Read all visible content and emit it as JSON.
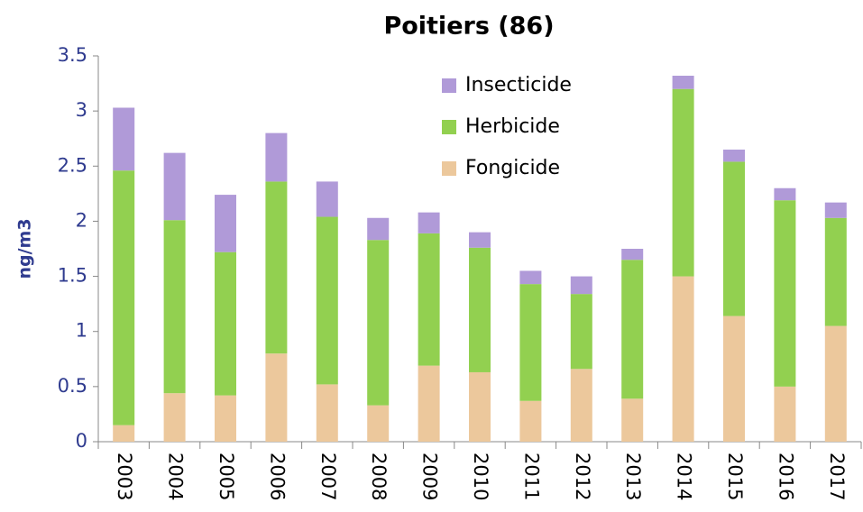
{
  "chart_data": {
    "type": "stacked_bar",
    "title": "Poitiers (86)",
    "y_label": "ng/m3",
    "categories": [
      "2003",
      "2004",
      "2005",
      "2006",
      "2007",
      "2008",
      "2009",
      "2010",
      "2011",
      "2012",
      "2013",
      "2014",
      "2015",
      "2016",
      "2017"
    ],
    "series": [
      {
        "name": "Fongicide",
        "color": "#ecc89c",
        "values": [
          0.15,
          0.44,
          0.42,
          0.8,
          0.52,
          0.33,
          0.69,
          0.63,
          0.37,
          0.66,
          0.39,
          1.5,
          1.14,
          0.5,
          1.05
        ]
      },
      {
        "name": "Herbicide",
        "color": "#92d050",
        "values": [
          2.31,
          1.57,
          1.3,
          1.56,
          1.52,
          1.5,
          1.2,
          1.13,
          1.06,
          0.68,
          1.26,
          1.7,
          1.4,
          1.69,
          0.98
        ]
      },
      {
        "name": "Insecticide",
        "color": "#b09ad8",
        "values": [
          0.57,
          0.61,
          0.52,
          0.44,
          0.32,
          0.2,
          0.19,
          0.14,
          0.12,
          0.16,
          0.1,
          0.12,
          0.11,
          0.11,
          0.14
        ]
      }
    ],
    "ylim": [
      0,
      3.5
    ],
    "yticks": [
      0,
      0.5,
      1,
      1.5,
      2,
      2.5,
      3,
      3.5
    ],
    "grid": false,
    "legend": "top"
  }
}
